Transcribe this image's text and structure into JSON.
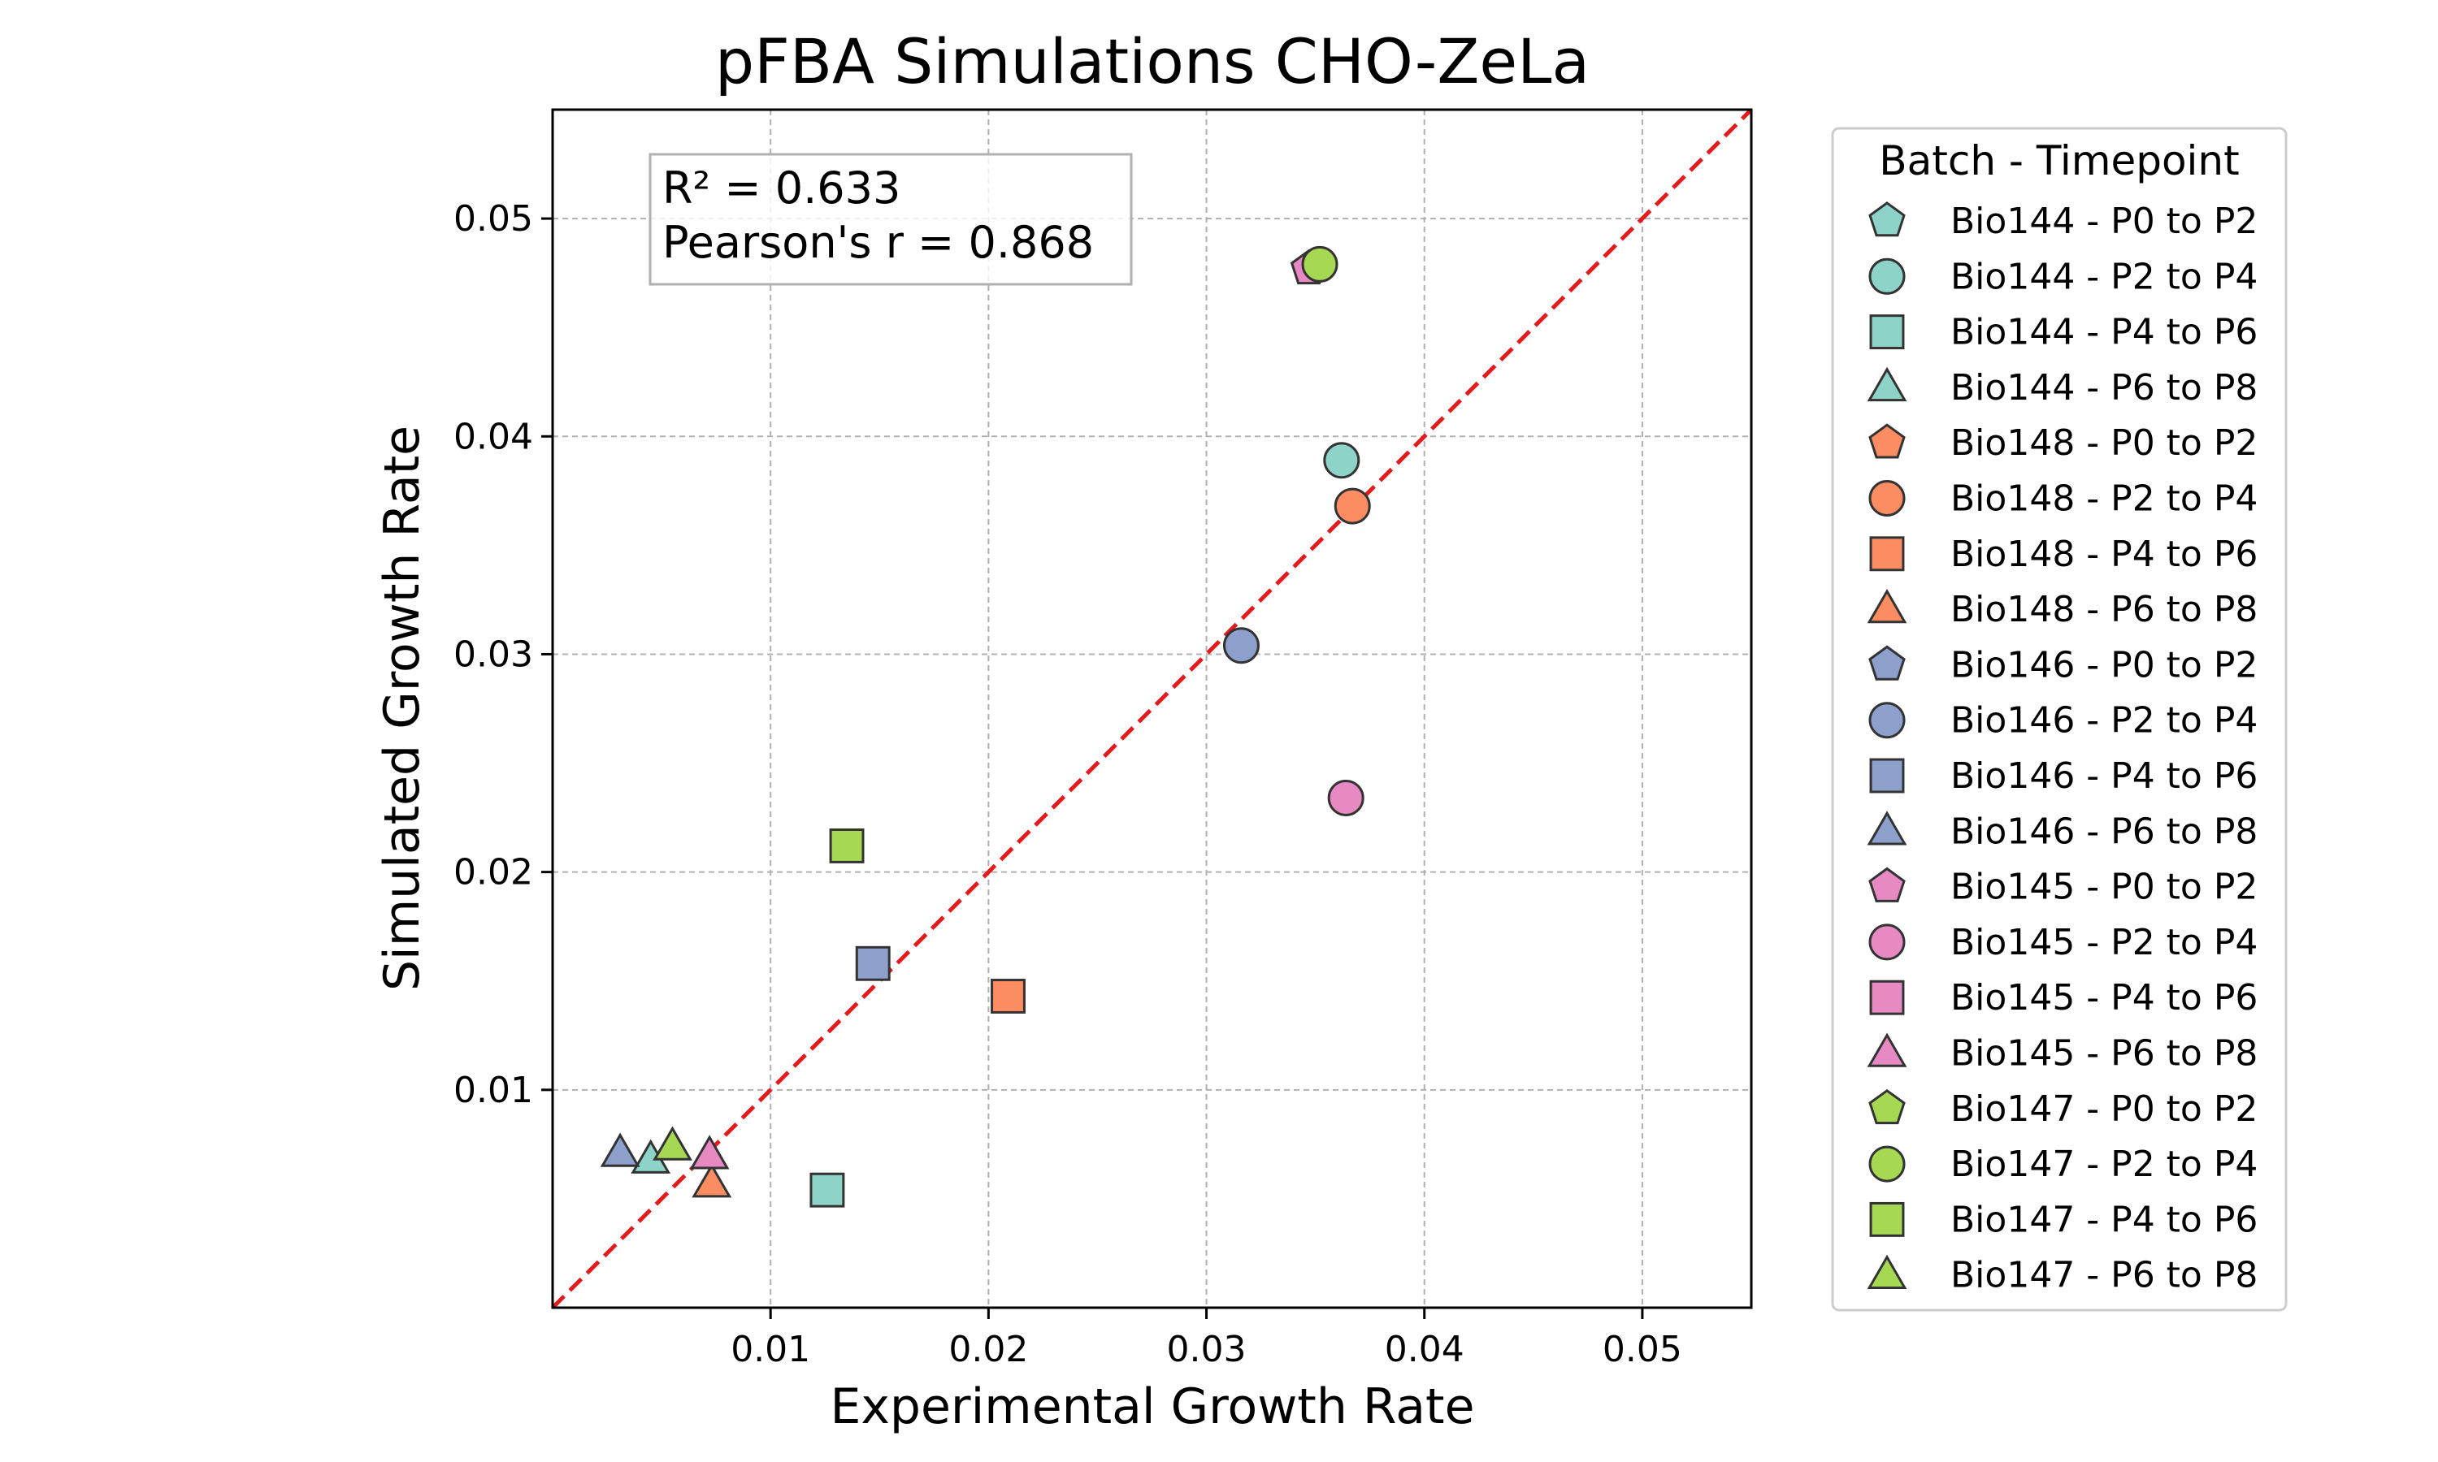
{
  "chart_data": {
    "type": "scatter",
    "title": "pFBA Simulations CHO-ZeLa",
    "xlabel": "Experimental Growth Rate",
    "ylabel": "Simulated Growth Rate",
    "xlim": [
      0,
      0.055
    ],
    "ylim": [
      0,
      0.055
    ],
    "xticks": [
      "0.01",
      "0.02",
      "0.03",
      "0.04",
      "0.05"
    ],
    "yticks": [
      "0.01",
      "0.02",
      "0.03",
      "0.04",
      "0.05"
    ],
    "grid": true,
    "reference_line": "y = x",
    "reference_line_color": "#e41a1c",
    "stats": {
      "r2": "R² = 0.633",
      "pearson": "Pearson's r = 0.868"
    },
    "legend_title": "Batch - Timepoint",
    "legend_position": "outside-right",
    "series": [
      {
        "name": "Bio144 - P0 to P2",
        "batch": "Bio144",
        "color": "#8dd3c7",
        "marker": "pentagon",
        "points": []
      },
      {
        "name": "Bio144 - P2 to P4",
        "batch": "Bio144",
        "color": "#8dd3c7",
        "marker": "circle",
        "points": [
          [
            0.0362,
            0.0389
          ]
        ]
      },
      {
        "name": "Bio144 - P4 to P6",
        "batch": "Bio144",
        "color": "#8dd3c7",
        "marker": "square",
        "points": [
          [
            0.0126,
            0.0054
          ]
        ]
      },
      {
        "name": "Bio144 - P6 to P8",
        "batch": "Bio144",
        "color": "#8dd3c7",
        "marker": "triangle",
        "points": [
          [
            0.0045,
            0.0068
          ]
        ]
      },
      {
        "name": "Bio148 - P0 to P2",
        "batch": "Bio148",
        "color": "#fc8d62",
        "marker": "pentagon",
        "points": []
      },
      {
        "name": "Bio148 - P2 to P4",
        "batch": "Bio148",
        "color": "#fc8d62",
        "marker": "circle",
        "points": [
          [
            0.0367,
            0.0368
          ]
        ]
      },
      {
        "name": "Bio148 - P4 to P6",
        "batch": "Bio148",
        "color": "#fc8d62",
        "marker": "square",
        "points": [
          [
            0.0209,
            0.0143
          ]
        ]
      },
      {
        "name": "Bio148 - P6 to P8",
        "batch": "Bio148",
        "color": "#fc8d62",
        "marker": "triangle",
        "points": [
          [
            0.0073,
            0.0057
          ]
        ]
      },
      {
        "name": "Bio146 - P0 to P2",
        "batch": "Bio146",
        "color": "#8da0cb",
        "marker": "pentagon",
        "points": []
      },
      {
        "name": "Bio146 - P2 to P4",
        "batch": "Bio146",
        "color": "#8da0cb",
        "marker": "circle",
        "points": [
          [
            0.0316,
            0.0304
          ]
        ]
      },
      {
        "name": "Bio146 - P4 to P6",
        "batch": "Bio146",
        "color": "#8da0cb",
        "marker": "square",
        "points": [
          [
            0.0147,
            0.0158
          ]
        ]
      },
      {
        "name": "Bio146 - P6 to P8",
        "batch": "Bio146",
        "color": "#8da0cb",
        "marker": "triangle",
        "points": [
          [
            0.0031,
            0.0071
          ]
        ]
      },
      {
        "name": "Bio145 - P0 to P2",
        "batch": "Bio145",
        "color": "#e78ac3",
        "marker": "pentagon",
        "points": [
          [
            0.0347,
            0.0477
          ]
        ]
      },
      {
        "name": "Bio145 - P2 to P4",
        "batch": "Bio145",
        "color": "#e78ac3",
        "marker": "circle",
        "points": [
          [
            0.0364,
            0.0234
          ]
        ]
      },
      {
        "name": "Bio145 - P4 to P6",
        "batch": "Bio145",
        "color": "#e78ac3",
        "marker": "square",
        "points": []
      },
      {
        "name": "Bio145 - P6 to P8",
        "batch": "Bio145",
        "color": "#e78ac3",
        "marker": "triangle",
        "points": [
          [
            0.0072,
            0.007
          ]
        ]
      },
      {
        "name": "Bio147 - P0 to P2",
        "batch": "Bio147",
        "color": "#a6d854",
        "marker": "pentagon",
        "points": []
      },
      {
        "name": "Bio147 - P2 to P4",
        "batch": "Bio147",
        "color": "#a6d854",
        "marker": "circle",
        "points": [
          [
            0.0352,
            0.0479
          ]
        ]
      },
      {
        "name": "Bio147 - P4 to P6",
        "batch": "Bio147",
        "color": "#a6d854",
        "marker": "square",
        "points": [
          [
            0.0135,
            0.0212
          ]
        ]
      },
      {
        "name": "Bio147 - P6 to P8",
        "batch": "Bio147",
        "color": "#a6d854",
        "marker": "triangle",
        "points": [
          [
            0.0055,
            0.0074
          ]
        ]
      }
    ]
  }
}
